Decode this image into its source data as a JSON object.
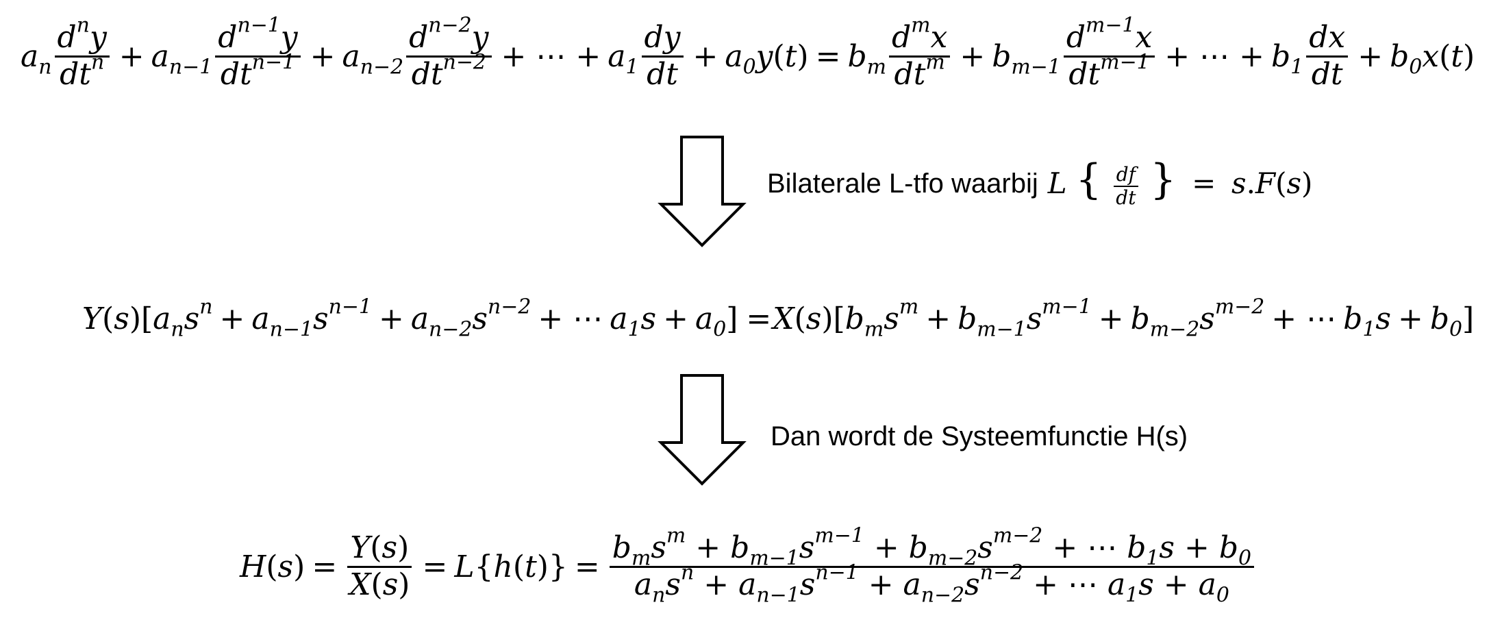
{
  "captions": {
    "step1": "Bilaterale L-tfo waarbij",
    "step2": "Dan wordt de Systeemfunctie H(s)"
  },
  "equations": {
    "eq1_lhs_equals": "=",
    "eq2_equals": "=",
    "eq3_equals": "="
  },
  "colors": {
    "text": "#000000",
    "arrow_fill": "#ffffff",
    "arrow_stroke": "#000000"
  },
  "icons": {
    "arrow": "down-arrow-icon"
  }
}
